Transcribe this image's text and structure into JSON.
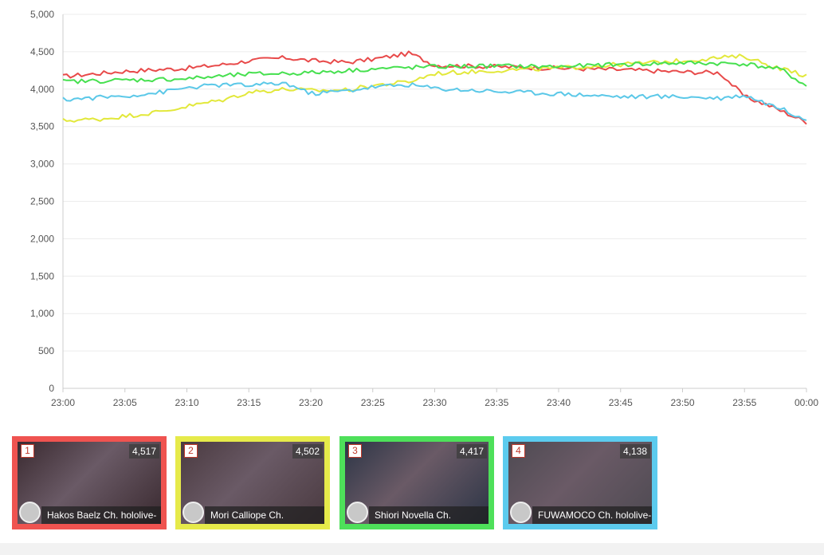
{
  "chart_data": {
    "type": "line",
    "y_ticks": [
      "0",
      "500",
      "1,000",
      "1,500",
      "2,000",
      "2,500",
      "3,000",
      "3,500",
      "4,000",
      "4,500",
      "5,000"
    ],
    "x_ticks": [
      "23:00",
      "23:05",
      "23:10",
      "23:15",
      "23:20",
      "23:25",
      "23:30",
      "23:35",
      "23:40",
      "23:45",
      "23:50",
      "23:55",
      "00:00"
    ],
    "ylim": [
      0,
      5000
    ],
    "xlim_minutes": [
      0,
      60
    ],
    "grid": true,
    "legend": "none",
    "series": [
      {
        "color": "#e84a4a",
        "x": [
          0,
          5,
          10,
          13,
          15,
          18,
          20,
          23,
          25,
          28,
          30,
          35,
          40,
          45,
          50,
          53,
          55,
          57,
          60
        ],
        "y": [
          4170,
          4240,
          4280,
          4330,
          4380,
          4420,
          4380,
          4360,
          4400,
          4480,
          4320,
          4300,
          4280,
          4260,
          4230,
          4220,
          3900,
          3780,
          3560
        ]
      },
      {
        "color": "#e2e83a",
        "x": [
          0,
          3,
          5,
          8,
          10,
          13,
          15,
          18,
          20,
          23,
          25,
          28,
          30,
          35,
          40,
          45,
          50,
          53,
          55,
          57,
          60
        ],
        "y": [
          3580,
          3600,
          3640,
          3700,
          3770,
          3860,
          3960,
          4000,
          3980,
          3990,
          4050,
          4100,
          4210,
          4250,
          4280,
          4330,
          4380,
          4420,
          4440,
          4320,
          4180
        ]
      },
      {
        "color": "#46e04f",
        "x": [
          0,
          5,
          10,
          15,
          20,
          25,
          30,
          35,
          40,
          45,
          50,
          55,
          58,
          60
        ],
        "y": [
          4100,
          4120,
          4140,
          4200,
          4220,
          4270,
          4300,
          4310,
          4300,
          4330,
          4350,
          4340,
          4260,
          4040
        ]
      },
      {
        "color": "#5bc8e8",
        "x": [
          0,
          5,
          8,
          10,
          13,
          15,
          18,
          20,
          23,
          25,
          28,
          30,
          35,
          40,
          45,
          50,
          53,
          55,
          57,
          60
        ],
        "y": [
          3860,
          3910,
          3960,
          4020,
          4060,
          4050,
          4080,
          3940,
          3980,
          4030,
          4060,
          4010,
          3970,
          3940,
          3900,
          3900,
          3880,
          3920,
          3800,
          3600
        ]
      }
    ]
  },
  "cards": [
    {
      "rank": "1",
      "count": "4,517",
      "name": "Hakos Baelz Ch. hololive-",
      "border": "#ef5350",
      "thumb_color": "#3a2a30"
    },
    {
      "rank": "2",
      "count": "4,502",
      "name": "Mori Calliope Ch.",
      "border": "#e6ea4a",
      "thumb_color": "#4a3a40"
    },
    {
      "rank": "3",
      "count": "4,417",
      "name": "Shiori Novella Ch.",
      "border": "#4ee05a",
      "thumb_color": "#2c3546"
    },
    {
      "rank": "4",
      "count": "4,138",
      "name": "FUWAMOCO Ch. hololive-",
      "border": "#5ccbee",
      "thumb_color": "#4e4a52"
    }
  ]
}
